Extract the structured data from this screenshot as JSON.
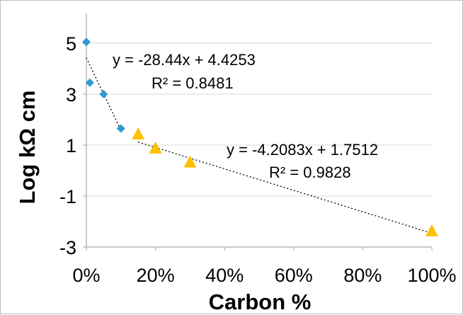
{
  "chart_data": {
    "type": "scatter",
    "xlabel": "Carbon %",
    "ylabel": "Log kΩ cm",
    "xlim": [
      0,
      1
    ],
    "ylim": [
      -3,
      6
    ],
    "x_ticks": [
      0,
      0.2,
      0.4,
      0.6,
      0.8,
      1.0
    ],
    "x_tick_labels": [
      "0%",
      "20%",
      "40%",
      "60%",
      "80%",
      "100%"
    ],
    "y_ticks": [
      5,
      3,
      1,
      -1,
      -3
    ],
    "y_tick_labels": [
      "5",
      "3",
      "1",
      "-1",
      "-3"
    ],
    "grid": "horizontal",
    "series": [
      {
        "marker": "diamond",
        "color": "#2E9AD6",
        "points": [
          {
            "x": 0.0,
            "y": 5.05
          },
          {
            "x": 0.01,
            "y": 3.45
          },
          {
            "x": 0.05,
            "y": 3.0
          },
          {
            "x": 0.1,
            "y": 1.65
          }
        ]
      },
      {
        "marker": "triangle",
        "color": "#FFC000",
        "points": [
          {
            "x": 0.15,
            "y": 1.4
          },
          {
            "x": 0.2,
            "y": 0.85
          },
          {
            "x": 0.3,
            "y": 0.3
          },
          {
            "x": 1.0,
            "y": -2.4
          }
        ]
      }
    ],
    "trendlines": [
      {
        "slope": -28.44,
        "intercept": 4.4253,
        "x_range": [
          0,
          0.1
        ]
      },
      {
        "slope": -4.2083,
        "intercept": 1.7512,
        "x_range": [
          0.15,
          1.0
        ]
      }
    ],
    "annotations": [
      {
        "equation": "y = -28.44x + 4.4253",
        "r2": "R² = 0.8481"
      },
      {
        "equation": "y = -4.2083x + 1.7512",
        "r2": "R² = 0.9828"
      }
    ]
  }
}
